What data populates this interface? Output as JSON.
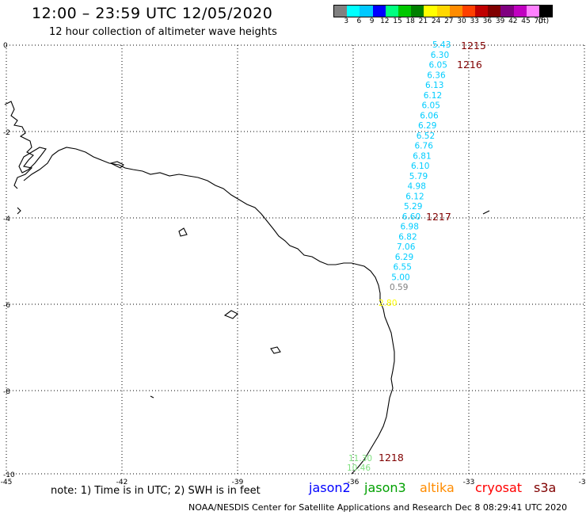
{
  "header": {
    "title": "12:00 – 23:59 UTC 12/05/2020",
    "subtitle": "12 hour collection of altimeter wave heights"
  },
  "legend": {
    "colors": [
      "#808080",
      "#00ffff",
      "#00c8ff",
      "#0000ff",
      "#00ff80",
      "#00c800",
      "#008000",
      "#ffff00",
      "#ffd700",
      "#ff8c00",
      "#ff4000",
      "#c00000",
      "#800000",
      "#800080",
      "#c000c0",
      "#ff80ff",
      "#000000"
    ],
    "labels": [
      "3",
      "6",
      "9",
      "12",
      "15",
      "18",
      "21",
      "24",
      "27",
      "30",
      "33",
      "36",
      "39",
      "42",
      "45",
      "70",
      "(ft)"
    ]
  },
  "axes": {
    "x_labels": [
      "-45",
      "-42",
      "-39",
      "-36",
      "-33",
      "-30"
    ],
    "y_labels": [
      "0",
      "-2",
      "-4",
      "-6",
      "-8",
      "-10"
    ]
  },
  "pass_labels": [
    "1215",
    "1216",
    "1217",
    "1218"
  ],
  "wave_heights": {
    "track_a": [
      "5.43",
      "6.30",
      "6.05",
      "6.36",
      "6.13",
      "6.12",
      "6.05",
      "6.06",
      "6.29",
      "6.52",
      "6.76",
      "6.81",
      "6.10",
      "5.79",
      "4.98",
      "6.12",
      "5.29",
      "6.60",
      "6.98",
      "6.82",
      "7.06",
      "6.29",
      "6.55",
      "5.00",
      "0.59",
      "2.80"
    ],
    "track_a_colors": [
      "#00ccff",
      "#00ccff",
      "#00ccff",
      "#00ccff",
      "#00ccff",
      "#00ccff",
      "#00ccff",
      "#00ccff",
      "#00ccff",
      "#00ccff",
      "#00ccff",
      "#00ccff",
      "#00ccff",
      "#00ccff",
      "#00ccff",
      "#00ccff",
      "#00ccff",
      "#00ccff",
      "#00ccff",
      "#00ccff",
      "#00ccff",
      "#00ccff",
      "#00ccff",
      "#00ccff",
      "#808080",
      "#ffff00"
    ],
    "track_b": [
      "11.30",
      "10.46"
    ],
    "track_b_colors": [
      "#80e080",
      "#80e080"
    ]
  },
  "footer": {
    "note": "note:  1) Time is in UTC;  2) SWH is in feet",
    "satellites": [
      {
        "name": "jason2",
        "color": "#0000ff"
      },
      {
        "name": "jason3",
        "color": "#00a000"
      },
      {
        "name": "altika",
        "color": "#ff8c00"
      },
      {
        "name": "cryosat",
        "color": "#ff0000"
      },
      {
        "name": "s3a",
        "color": "#800000"
      }
    ],
    "credit": "NOAA/NESDIS Center for Satellite Applications and Research     Dec  8 08:29:41 UTC 2020"
  }
}
